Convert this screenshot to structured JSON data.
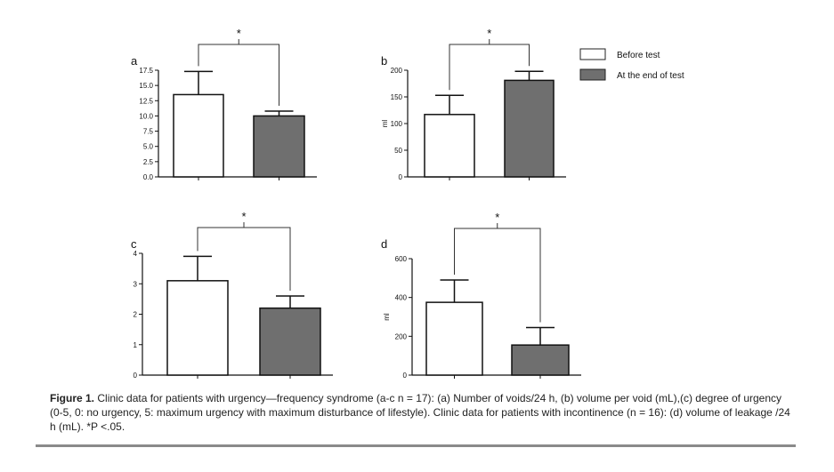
{
  "chart_data": [
    {
      "type": "bar",
      "panel": "a",
      "categories": [
        "Before test",
        "At the end of test"
      ],
      "values": [
        13.5,
        10.0
      ],
      "error": [
        3.8,
        0.8
      ],
      "ylim": [
        0,
        17.5
      ],
      "yticks": [
        "0.0",
        "2.5",
        "5.0",
        "7.5",
        "10.0",
        "12.5",
        "15.0",
        "17.5"
      ],
      "ytick_values": [
        0,
        2.5,
        5,
        7.5,
        10,
        12.5,
        15,
        17.5
      ],
      "ylabel": "",
      "significance": "*"
    },
    {
      "type": "bar",
      "panel": "b",
      "categories": [
        "Before test",
        "At the end of test"
      ],
      "values": [
        117,
        181
      ],
      "error": [
        36,
        17
      ],
      "ylim": [
        0,
        200
      ],
      "yticks": [
        "0",
        "50",
        "100",
        "150",
        "200"
      ],
      "ytick_values": [
        0,
        50,
        100,
        150,
        200
      ],
      "ylabel": "ml",
      "significance": "*"
    },
    {
      "type": "bar",
      "panel": "c",
      "categories": [
        "Before test",
        "At the end of test"
      ],
      "values": [
        3.1,
        2.2
      ],
      "error": [
        0.8,
        0.4
      ],
      "ylim": [
        0,
        4
      ],
      "yticks": [
        "0",
        "1",
        "2",
        "3",
        "4"
      ],
      "ytick_values": [
        0,
        1,
        2,
        3,
        4
      ],
      "ylabel": "",
      "significance": "*"
    },
    {
      "type": "bar",
      "panel": "d",
      "categories": [
        "Before test",
        "At the end of test"
      ],
      "values": [
        375,
        155
      ],
      "error": [
        115,
        90
      ],
      "ylim": [
        0,
        600
      ],
      "yticks": [
        "0",
        "200",
        "400",
        "600"
      ],
      "ytick_values": [
        0,
        200,
        400,
        600
      ],
      "ylabel": "ml",
      "significance": "*"
    }
  ],
  "legend": {
    "items": [
      {
        "label": "Before test",
        "color": "#ffffff"
      },
      {
        "label": "At the end of test",
        "color": "#6f6f6f"
      }
    ]
  },
  "caption": {
    "label": "Figure 1.",
    "text": "Clinic data for patients with urgency—frequency syndrome (a-c n = 17): (a) Number of voids/24 h, (b) volume per void (mL),(c) degree of urgency (0-5, 0: no urgency, 5: maximum urgency with maximum disturbance of lifestyle). Clinic data for patients with incontinence (n = 16): (d) volume of leakage /24 h (mL). *P <.05."
  },
  "colors": {
    "before": "#ffffff",
    "after": "#6f6f6f",
    "axis": "#111111",
    "rule": "#8a8a8a"
  }
}
